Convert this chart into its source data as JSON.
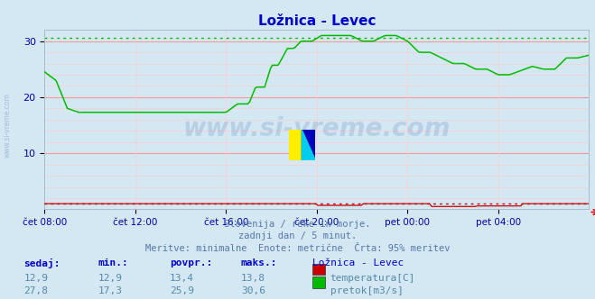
{
  "title": "Ložnica - Levec",
  "bg_color": "#d4e8f4",
  "title_color": "#0000cc",
  "axis_color": "#0000aa",
  "grid_color_major": "#ff9999",
  "grid_color_minor": "#ffcccc",
  "text_color": "#5577aa",
  "subtitle_lines": [
    "Slovenija / reke in morje.",
    "zadnji dan / 5 minut.",
    "Meritve: minimalne  Enote: metrične  Črta: 95% meritev"
  ],
  "table_headers": [
    "sedaj:",
    "min.:",
    "povpr.:",
    "maks.:",
    "Ložnica - Levec"
  ],
  "table_row1": [
    "12,9",
    "12,9",
    "13,4",
    "13,8"
  ],
  "table_row2": [
    "27,8",
    "17,3",
    "25,9",
    "30,6"
  ],
  "table_label1": "temperatura[C]",
  "table_label2": "pretok[m3/s]",
  "color_temp": "#cc0000",
  "color_flow": "#00bb00",
  "ylim": [
    0,
    32
  ],
  "ytick_vals": [
    10,
    20,
    30
  ],
  "xtick_labels": [
    "čet 08:00",
    "čet 12:00",
    "čet 16:00",
    "čet 20:00",
    "pet 00:00",
    "pet 04:00"
  ],
  "watermark": "www.si-vreme.com",
  "watermark_color": "#3366aa",
  "watermark_alpha": 0.18,
  "sidebar_text": "www.si-vreme.com",
  "dotted_flow_max": 30.6,
  "dotted_temp_max": 1.0
}
